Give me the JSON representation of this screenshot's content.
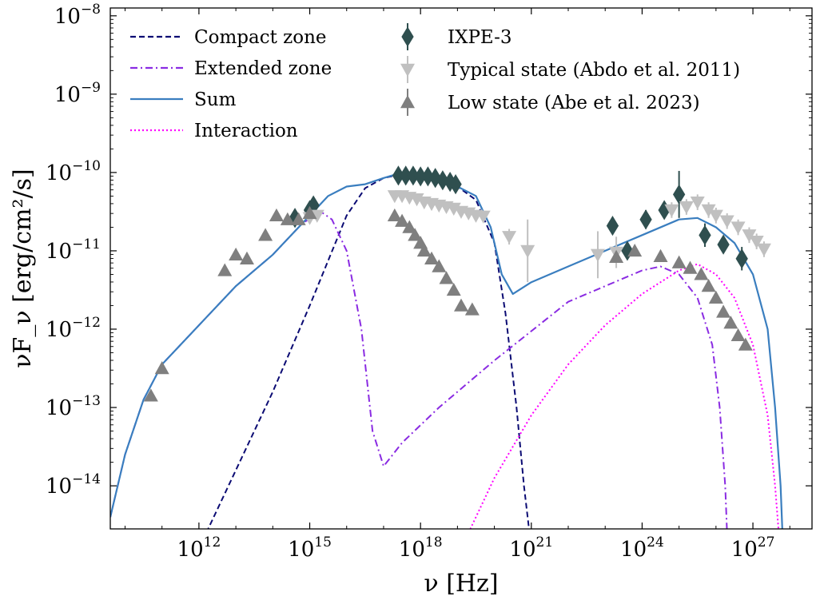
{
  "chart_data": {
    "type": "line",
    "title": "",
    "xlabel": "ν [Hz]",
    "ylabel": "νF_ν [erg/cm²/s]",
    "x_scale": "log",
    "y_scale": "log",
    "xlim_log10": [
      9.6,
      28.6
    ],
    "ylim_log10": [
      -14.55,
      -7.9
    ],
    "x_ticks": [
      {
        "base": "10",
        "exp": "12",
        "log": 12
      },
      {
        "base": "10",
        "exp": "15",
        "log": 15
      },
      {
        "base": "10",
        "exp": "18",
        "log": 18
      },
      {
        "base": "10",
        "exp": "21",
        "log": 21
      },
      {
        "base": "10",
        "exp": "24",
        "log": 24
      },
      {
        "base": "10",
        "exp": "27",
        "log": 27
      }
    ],
    "y_ticks": [
      {
        "base": "10",
        "exp": "−8",
        "log": -8
      },
      {
        "base": "10",
        "exp": "−9",
        "log": -9
      },
      {
        "base": "10",
        "exp": "−10",
        "log": -10
      },
      {
        "base": "10",
        "exp": "−11",
        "log": -11
      },
      {
        "base": "10",
        "exp": "−12",
        "log": -12
      },
      {
        "base": "10",
        "exp": "−13",
        "log": -13
      },
      {
        "base": "10",
        "exp": "−14",
        "log": -14
      }
    ],
    "legend_position": "top-left, two columns",
    "series": [
      {
        "name": "Compact zone",
        "kind": "line",
        "style": "dashed",
        "color": "#0b0b73",
        "points": [
          [
            12.2,
            -14.6
          ],
          [
            13.0,
            -13.8
          ],
          [
            14.0,
            -12.8
          ],
          [
            15.0,
            -11.7
          ],
          [
            16.0,
            -10.55
          ],
          [
            16.5,
            -10.2
          ],
          [
            17.0,
            -10.07
          ],
          [
            17.5,
            -10.02
          ],
          [
            18.0,
            -10.05
          ],
          [
            18.5,
            -10.1
          ],
          [
            19.0,
            -10.18
          ],
          [
            19.5,
            -10.35
          ],
          [
            20.0,
            -10.9
          ],
          [
            20.3,
            -11.8
          ],
          [
            20.6,
            -13.0
          ],
          [
            20.8,
            -14.0
          ],
          [
            20.95,
            -14.6
          ]
        ]
      },
      {
        "name": "Extended zone",
        "kind": "line",
        "style": "dashdot",
        "color": "#8a2be2",
        "points": [
          [
            9.6,
            -14.4
          ],
          [
            10.0,
            -13.6
          ],
          [
            10.5,
            -12.9
          ],
          [
            11.0,
            -12.45
          ],
          [
            11.5,
            -12.2
          ],
          [
            12.0,
            -11.95
          ],
          [
            13.0,
            -11.45
          ],
          [
            14.0,
            -11.05
          ],
          [
            14.8,
            -10.65
          ],
          [
            15.3,
            -10.5
          ],
          [
            15.6,
            -10.6
          ],
          [
            16.0,
            -11.0
          ],
          [
            16.4,
            -12.0
          ],
          [
            16.7,
            -13.3
          ],
          [
            17.0,
            -13.75
          ],
          [
            17.5,
            -13.45
          ],
          [
            18.5,
            -13.0
          ],
          [
            20.0,
            -12.4
          ],
          [
            22.0,
            -11.65
          ],
          [
            24.0,
            -11.25
          ],
          [
            24.5,
            -11.2
          ],
          [
            25.0,
            -11.3
          ],
          [
            25.5,
            -11.6
          ],
          [
            25.9,
            -12.2
          ],
          [
            26.1,
            -13.0
          ],
          [
            26.25,
            -14.0
          ],
          [
            26.3,
            -14.6
          ]
        ]
      },
      {
        "name": "Sum",
        "kind": "line",
        "style": "solid",
        "color": "#3a7ebf",
        "points": [
          [
            9.6,
            -14.4
          ],
          [
            10.0,
            -13.6
          ],
          [
            10.5,
            -12.9
          ],
          [
            11.0,
            -12.45
          ],
          [
            11.5,
            -12.2
          ],
          [
            12.0,
            -11.95
          ],
          [
            13.0,
            -11.45
          ],
          [
            14.0,
            -11.05
          ],
          [
            15.0,
            -10.55
          ],
          [
            15.5,
            -10.3
          ],
          [
            16.0,
            -10.18
          ],
          [
            16.5,
            -10.15
          ],
          [
            17.0,
            -10.07
          ],
          [
            17.5,
            -10.0
          ],
          [
            18.0,
            -10.05
          ],
          [
            18.5,
            -10.1
          ],
          [
            19.0,
            -10.18
          ],
          [
            19.5,
            -10.3
          ],
          [
            19.9,
            -10.7
          ],
          [
            20.2,
            -11.3
          ],
          [
            20.5,
            -11.55
          ],
          [
            21.0,
            -11.4
          ],
          [
            22.0,
            -11.2
          ],
          [
            23.0,
            -11.0
          ],
          [
            24.0,
            -10.8
          ],
          [
            25.0,
            -10.6
          ],
          [
            25.5,
            -10.58
          ],
          [
            26.0,
            -10.7
          ],
          [
            26.5,
            -10.9
          ],
          [
            27.0,
            -11.3
          ],
          [
            27.4,
            -12.0
          ],
          [
            27.6,
            -13.0
          ],
          [
            27.75,
            -14.0
          ],
          [
            27.8,
            -14.6
          ]
        ]
      },
      {
        "name": "Interaction",
        "kind": "line",
        "style": "dotted",
        "color": "#ff00ff",
        "points": [
          [
            19.3,
            -14.6
          ],
          [
            20.0,
            -13.9
          ],
          [
            21.0,
            -13.1
          ],
          [
            22.0,
            -12.45
          ],
          [
            23.0,
            -11.95
          ],
          [
            24.0,
            -11.55
          ],
          [
            25.0,
            -11.25
          ],
          [
            25.5,
            -11.17
          ],
          [
            26.0,
            -11.3
          ],
          [
            26.5,
            -11.6
          ],
          [
            27.0,
            -12.2
          ],
          [
            27.4,
            -13.1
          ],
          [
            27.6,
            -14.0
          ],
          [
            27.7,
            -14.6
          ]
        ]
      },
      {
        "name": "IXPE-3",
        "kind": "errorbar",
        "marker": "diamond",
        "color": "#2f4f4f",
        "points": [
          [
            14.6,
            -10.58,
            0.06
          ],
          [
            15.0,
            -10.48,
            0.06
          ],
          [
            15.1,
            -10.42,
            0.06
          ],
          [
            17.4,
            -10.04,
            0.04
          ],
          [
            17.6,
            -10.04,
            0.04
          ],
          [
            17.8,
            -10.04,
            0.04
          ],
          [
            18.0,
            -10.05,
            0.04
          ],
          [
            18.2,
            -10.05,
            0.04
          ],
          [
            18.4,
            -10.07,
            0.04
          ],
          [
            18.6,
            -10.1,
            0.04
          ],
          [
            18.8,
            -10.12,
            0.04
          ],
          [
            18.95,
            -10.15,
            0.04
          ],
          [
            23.2,
            -10.68,
            0.08
          ],
          [
            23.6,
            -11.0,
            0.1
          ],
          [
            24.1,
            -10.6,
            0.12
          ],
          [
            24.6,
            -10.48,
            0.05
          ],
          [
            25.0,
            -10.28,
            0.3
          ],
          [
            25.7,
            -10.8,
            0.15
          ],
          [
            26.2,
            -10.92,
            0.1
          ],
          [
            26.7,
            -11.1,
            0.15
          ]
        ]
      },
      {
        "name": "Typical state (Abdo et al. 2011)",
        "kind": "errorbar",
        "marker": "triangle-down",
        "color": "#c0c0c0",
        "points": [
          [
            15.0,
            -10.58,
            0.05
          ],
          [
            15.2,
            -10.55,
            0.05
          ],
          [
            17.3,
            -10.3,
            0.05
          ],
          [
            17.5,
            -10.3,
            0.05
          ],
          [
            17.7,
            -10.32,
            0.05
          ],
          [
            17.9,
            -10.34,
            0.05
          ],
          [
            18.1,
            -10.38,
            0.05
          ],
          [
            18.3,
            -10.4,
            0.05
          ],
          [
            18.5,
            -10.42,
            0.05
          ],
          [
            18.7,
            -10.44,
            0.05
          ],
          [
            18.9,
            -10.46,
            0.05
          ],
          [
            19.1,
            -10.5,
            0.05
          ],
          [
            19.3,
            -10.52,
            0.05
          ],
          [
            19.5,
            -10.55,
            0.05
          ],
          [
            19.7,
            -10.56,
            0.05
          ],
          [
            20.4,
            -10.82,
            0.1
          ],
          [
            20.9,
            -11.0,
            0.4
          ],
          [
            22.8,
            -11.05,
            0.3
          ],
          [
            23.3,
            -11.02,
            0.2
          ],
          [
            24.8,
            -10.48,
            0.1
          ],
          [
            25.2,
            -10.44,
            0.1
          ],
          [
            25.5,
            -10.38,
            0.1
          ],
          [
            25.8,
            -10.48,
            0.1
          ],
          [
            26.0,
            -10.55,
            0.1
          ],
          [
            26.3,
            -10.62,
            0.1
          ],
          [
            26.6,
            -10.7,
            0.1
          ],
          [
            26.9,
            -10.8,
            0.1
          ],
          [
            27.1,
            -10.88,
            0.1
          ],
          [
            27.3,
            -10.98,
            0.1
          ]
        ]
      },
      {
        "name": "Low state (Abe et al. 2023)",
        "kind": "errorbar",
        "marker": "triangle-up",
        "color": "#7f7f7f",
        "points": [
          [
            10.7,
            -12.85,
            0
          ],
          [
            11.0,
            -12.5,
            0
          ],
          [
            12.7,
            -11.25,
            0
          ],
          [
            13.0,
            -11.05,
            0
          ],
          [
            13.3,
            -11.1,
            0
          ],
          [
            13.8,
            -10.8,
            0
          ],
          [
            14.1,
            -10.55,
            0
          ],
          [
            14.4,
            -10.6,
            0
          ],
          [
            14.7,
            -10.6,
            0
          ],
          [
            15.0,
            -10.52,
            0
          ],
          [
            17.3,
            -10.55,
            0
          ],
          [
            17.5,
            -10.62,
            0
          ],
          [
            17.7,
            -10.7,
            0
          ],
          [
            17.85,
            -10.8,
            0
          ],
          [
            18.0,
            -10.9,
            0
          ],
          [
            18.1,
            -11.0,
            0
          ],
          [
            18.3,
            -11.1,
            0
          ],
          [
            18.5,
            -11.2,
            0
          ],
          [
            18.7,
            -11.35,
            0
          ],
          [
            18.9,
            -11.5,
            0
          ],
          [
            19.1,
            -11.7,
            0
          ],
          [
            19.4,
            -11.75,
            0
          ],
          [
            23.3,
            -11.08,
            0
          ],
          [
            23.8,
            -11.0,
            0
          ],
          [
            24.5,
            -11.07,
            0
          ],
          [
            25.0,
            -11.15,
            0
          ],
          [
            25.3,
            -11.22,
            0
          ],
          [
            25.6,
            -11.3,
            0
          ],
          [
            25.8,
            -11.45,
            0
          ],
          [
            26.0,
            -11.6,
            0
          ],
          [
            26.2,
            -11.78,
            0
          ],
          [
            26.4,
            -11.92,
            0
          ],
          [
            26.6,
            -12.08,
            0
          ],
          [
            26.8,
            -12.2,
            0
          ]
        ]
      }
    ]
  }
}
